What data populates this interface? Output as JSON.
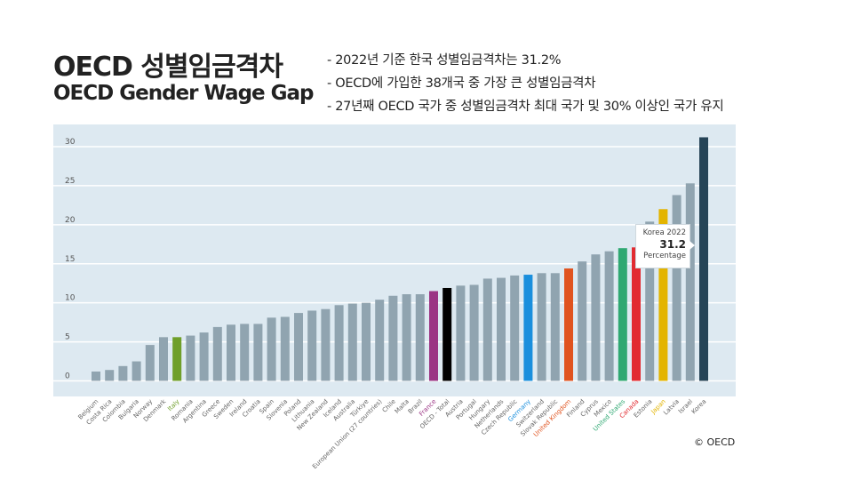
{
  "header": {
    "title_ko": "OECD 성별임금격차",
    "title_en": "OECD Gender Wage Gap",
    "bullets": [
      "- 2022년 기준 한국 성별임금격차는 31.2%",
      "- OECD에 가입한 38개국 중 가장 큰 성별임금격차",
      "- 27년째 OECD 국가 중 성별임금격차 최대 국가 및 30% 이상인 국가 유지"
    ]
  },
  "copyright": "© OECD",
  "tooltip": {
    "title": "Korea 2022",
    "value": "31.2",
    "unit": "Percentage"
  },
  "chart_data": {
    "type": "bar",
    "ylim": [
      0,
      30
    ],
    "yticks": [
      0,
      5,
      10,
      15,
      20,
      25,
      30
    ],
    "grid": true,
    "background": "#dde9f1",
    "default_color": "#90a4b0",
    "categories": [
      "Belgium",
      "Costa Rica",
      "Colombia",
      "Bulgaria",
      "Norway",
      "Denmark",
      "Italy",
      "Romania",
      "Argentina",
      "Greece",
      "Sweden",
      "Ireland",
      "Croatia",
      "Spain",
      "Slovenia",
      "Poland",
      "Lithuania",
      "New Zealand",
      "Iceland",
      "Australia",
      "Türkiye",
      "European Union (27 countries)",
      "Chile",
      "Malta",
      "Brazil",
      "France",
      "OECD - Total",
      "Austria",
      "Portugal",
      "Hungary",
      "Netherlands",
      "Czech Republic",
      "Germany",
      "Switzerland",
      "Slovak Republic",
      "United Kingdom",
      "Finland",
      "Cyprus",
      "Mexico",
      "United States",
      "Canada",
      "Estonia",
      "Japan",
      "Latvia",
      "Israel",
      "Korea"
    ],
    "values": [
      1.2,
      1.4,
      1.9,
      2.5,
      4.6,
      5.6,
      5.6,
      5.8,
      6.2,
      6.9,
      7.2,
      7.3,
      7.3,
      8.1,
      8.2,
      8.7,
      9.0,
      9.2,
      9.7,
      9.9,
      10.0,
      10.4,
      10.9,
      11.1,
      11.1,
      11.5,
      11.9,
      12.2,
      12.3,
      13.1,
      13.2,
      13.5,
      13.6,
      13.8,
      13.8,
      14.4,
      15.3,
      16.2,
      16.6,
      17.0,
      17.1,
      20.4,
      22.0,
      23.8,
      25.3,
      31.2
    ],
    "highlight_colors": {
      "Italy": "#6f9f2a",
      "France": "#9b3584",
      "OECD - Total": "#000000",
      "Germany": "#1a8fdd",
      "United Kingdom": "#e0531f",
      "United States": "#2fa872",
      "Canada": "#e22b31",
      "Japan": "#e3b400",
      "Korea": "#264457"
    }
  }
}
